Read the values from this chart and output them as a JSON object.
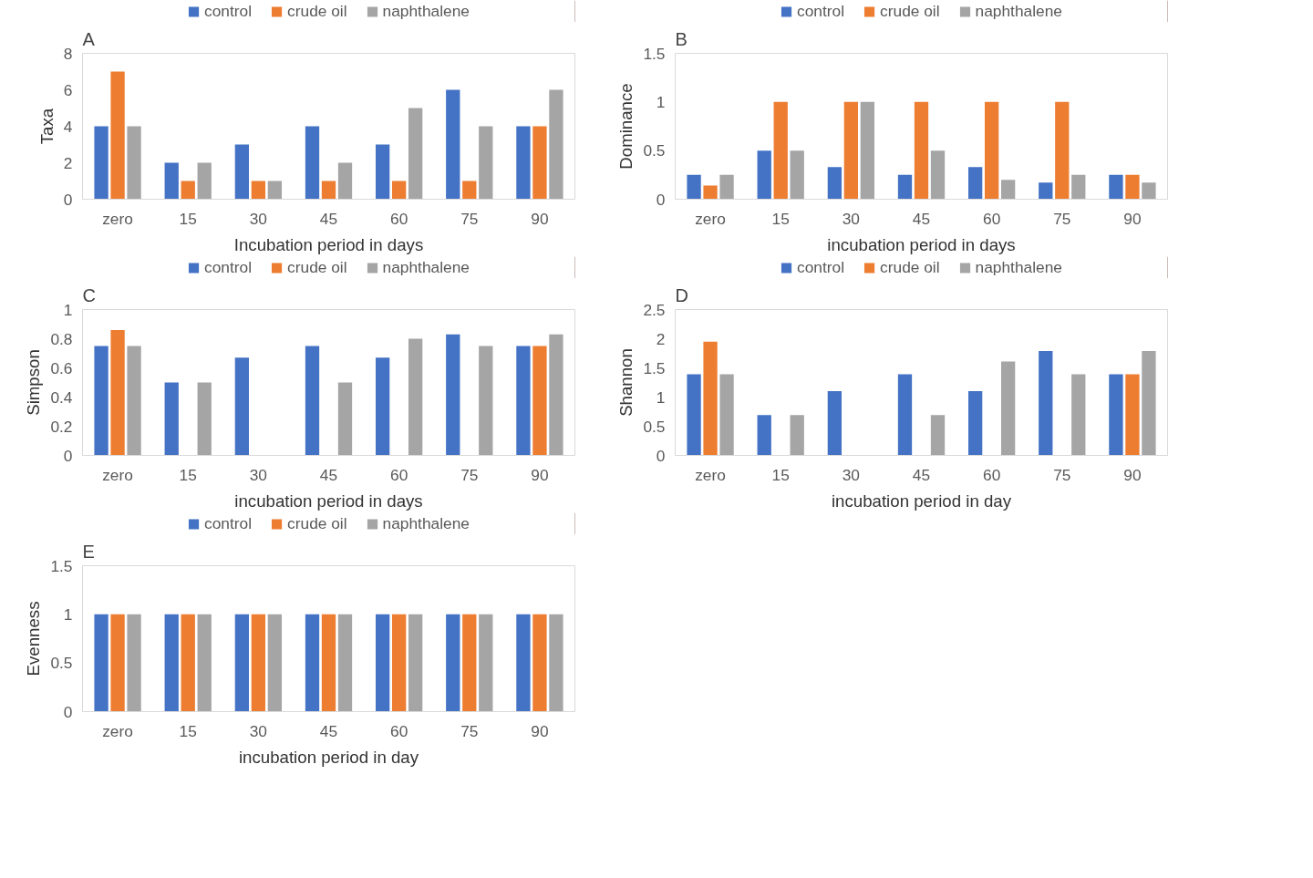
{
  "chart_data": [
    {
      "type": "bar",
      "title": "A",
      "xlabel": "Incubation period in days",
      "ylabel": "Taxa",
      "categories": [
        "zero",
        "15",
        "30",
        "45",
        "60",
        "75",
        "90"
      ],
      "series": [
        {
          "name": "control",
          "color": "#4472c4",
          "values": [
            4,
            2,
            3,
            4,
            3,
            6,
            4
          ]
        },
        {
          "name": "crude oil",
          "color": "#ed7d31",
          "values": [
            7,
            1,
            1,
            1,
            1,
            1,
            4
          ]
        },
        {
          "name": "naphthalene",
          "color": "#a5a5a5",
          "values": [
            4,
            2,
            1,
            2,
            5,
            4,
            6
          ]
        }
      ],
      "ylim": [
        0,
        8
      ],
      "yticks": [
        0,
        2,
        4,
        6,
        8
      ],
      "grid": false,
      "legend": "top"
    },
    {
      "type": "bar",
      "title": "B",
      "xlabel": "incubation period in days",
      "ylabel": "Dominance",
      "categories": [
        "zero",
        "15",
        "30",
        "45",
        "60",
        "75",
        "90"
      ],
      "series": [
        {
          "name": "control",
          "color": "#4472c4",
          "values": [
            0.25,
            0.5,
            0.33,
            0.25,
            0.33,
            0.17,
            0.25
          ]
        },
        {
          "name": "crude oil",
          "color": "#ed7d31",
          "values": [
            0.14,
            1,
            1,
            1,
            1,
            1,
            0.25
          ]
        },
        {
          "name": "naphthalene",
          "color": "#a5a5a5",
          "values": [
            0.25,
            0.5,
            1,
            0.5,
            0.2,
            0.25,
            0.17
          ]
        }
      ],
      "ylim": [
        0,
        1.5
      ],
      "yticks": [
        0,
        0.5,
        1,
        1.5
      ],
      "grid": false,
      "legend": "top"
    },
    {
      "type": "bar",
      "title": "C",
      "xlabel": "incubation period in days",
      "ylabel": "Simpson",
      "categories": [
        "zero",
        "15",
        "30",
        "45",
        "60",
        "75",
        "90"
      ],
      "series": [
        {
          "name": "control",
          "color": "#4472c4",
          "values": [
            0.75,
            0.5,
            0.67,
            0.75,
            0.67,
            0.83,
            0.75
          ]
        },
        {
          "name": "crude oil",
          "color": "#ed7d31",
          "values": [
            0.86,
            0,
            0,
            0,
            0,
            0,
            0.75
          ]
        },
        {
          "name": "naphthalene",
          "color": "#a5a5a5",
          "values": [
            0.75,
            0.5,
            0,
            0.5,
            0.8,
            0.75,
            0.83
          ]
        }
      ],
      "ylim": [
        0,
        1
      ],
      "yticks": [
        0,
        0.2,
        0.4,
        0.6,
        0.8,
        1
      ],
      "grid": false,
      "legend": "top"
    },
    {
      "type": "bar",
      "title": "D",
      "xlabel": "incubation period in day",
      "ylabel": "Shannon",
      "categories": [
        "zero",
        "15",
        "30",
        "45",
        "60",
        "75",
        "90"
      ],
      "series": [
        {
          "name": "control",
          "color": "#4472c4",
          "values": [
            1.39,
            0.69,
            1.1,
            1.39,
            1.1,
            1.79,
            1.39
          ]
        },
        {
          "name": "crude oil",
          "color": "#ed7d31",
          "values": [
            1.95,
            0,
            0,
            0,
            0,
            0,
            1.39
          ]
        },
        {
          "name": "naphthalene",
          "color": "#a5a5a5",
          "values": [
            1.39,
            0.69,
            0,
            0.69,
            1.61,
            1.39,
            1.79
          ]
        }
      ],
      "ylim": [
        0,
        2.5
      ],
      "yticks": [
        0,
        0.5,
        1,
        1.5,
        2,
        2.5
      ],
      "grid": false,
      "legend": "top"
    },
    {
      "type": "bar",
      "title": "E",
      "xlabel": "incubation period in day",
      "ylabel": "Evenness",
      "categories": [
        "zero",
        "15",
        "30",
        "45",
        "60",
        "75",
        "90"
      ],
      "series": [
        {
          "name": "control",
          "color": "#4472c4",
          "values": [
            1,
            1,
            1,
            1,
            1,
            1,
            1
          ]
        },
        {
          "name": "crude oil",
          "color": "#ed7d31",
          "values": [
            1,
            1,
            1,
            1,
            1,
            1,
            1
          ]
        },
        {
          "name": "naphthalene",
          "color": "#a5a5a5",
          "values": [
            1,
            1,
            1,
            1,
            1,
            1,
            1
          ]
        }
      ],
      "ylim": [
        0,
        1.5
      ],
      "yticks": [
        0,
        0.5,
        1,
        1.5
      ],
      "grid": false,
      "legend": "top"
    }
  ]
}
